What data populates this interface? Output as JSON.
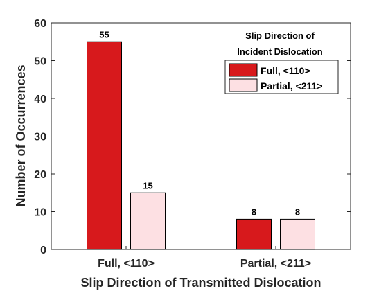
{
  "chart_data": {
    "type": "bar",
    "categories": [
      "Full, <110>",
      "Partial, <211>"
    ],
    "series": [
      {
        "name": "Full, <110>",
        "values": [
          55,
          8
        ],
        "color": "#d7191c"
      },
      {
        "name": "Partial, <211>",
        "values": [
          15,
          8
        ],
        "color": "#fde0e3"
      }
    ],
    "xlabel": "Slip Direction of Transmitted Dislocation",
    "ylabel": "Number of Occurrences",
    "ylim": [
      0,
      60
    ],
    "yticks": [
      0,
      10,
      20,
      30,
      40,
      50,
      60
    ],
    "legend": {
      "title_lines": [
        "Slip Direction of",
        "Incident Dislocation"
      ],
      "placement": "top-right"
    },
    "grid": false,
    "bar_edge_color": "#000000",
    "axis_color": "#262626"
  }
}
